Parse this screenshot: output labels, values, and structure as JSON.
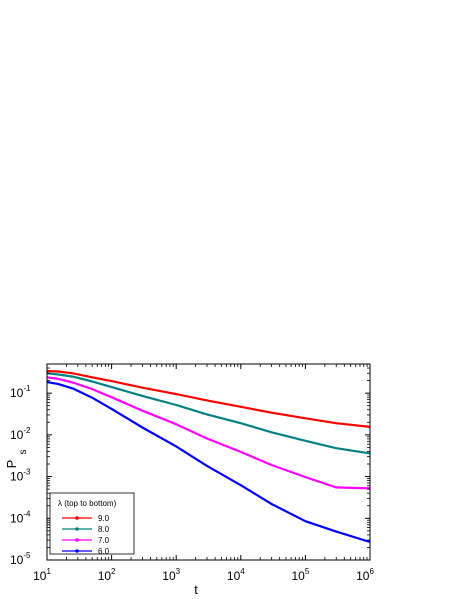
{
  "chart_data": {
    "type": "line",
    "xlabel": "t",
    "ylabel": "P",
    "ylabel_subscript": "s",
    "xscale": "log",
    "yscale": "log",
    "xlim": [
      10,
      1000000
    ],
    "ylim": [
      1e-05,
      0.5
    ],
    "x_ticks": [
      {
        "base": "10",
        "exp": "1"
      },
      {
        "base": "10",
        "exp": "2"
      },
      {
        "base": "10",
        "exp": "3"
      },
      {
        "base": "10",
        "exp": "4"
      },
      {
        "base": "10",
        "exp": "5"
      },
      {
        "base": "10",
        "exp": "6"
      }
    ],
    "y_ticks": [
      {
        "base": "10",
        "exp": "-5"
      },
      {
        "base": "10",
        "exp": "-4"
      },
      {
        "base": "10",
        "exp": "-3"
      },
      {
        "base": "10",
        "exp": "-2"
      },
      {
        "base": "10",
        "exp": "-1"
      }
    ],
    "legend": {
      "title": "λ (top to bottom)",
      "position": "bottom-left"
    },
    "series": [
      {
        "name": "9.0",
        "color": "#ff0000",
        "points": [
          [
            10,
            0.34
          ],
          [
            15,
            0.33
          ],
          [
            25,
            0.3
          ],
          [
            50,
            0.24
          ],
          [
            100,
            0.195
          ],
          [
            300,
            0.135
          ],
          [
            1000,
            0.095
          ],
          [
            3000,
            0.067
          ],
          [
            10000,
            0.047
          ],
          [
            30000,
            0.034
          ],
          [
            100000,
            0.025
          ],
          [
            300000,
            0.019
          ],
          [
            1000000,
            0.0155
          ]
        ]
      },
      {
        "name": "8.0",
        "color": "#008080",
        "points": [
          [
            10,
            0.3
          ],
          [
            15,
            0.28
          ],
          [
            25,
            0.25
          ],
          [
            50,
            0.19
          ],
          [
            100,
            0.14
          ],
          [
            300,
            0.086
          ],
          [
            1000,
            0.052
          ],
          [
            3000,
            0.031
          ],
          [
            10000,
            0.019
          ],
          [
            30000,
            0.0115
          ],
          [
            100000,
            0.0072
          ],
          [
            300000,
            0.0048
          ],
          [
            1000000,
            0.0036
          ]
        ]
      },
      {
        "name": "7.0",
        "color": "#ff00ff",
        "points": [
          [
            10,
            0.24
          ],
          [
            15,
            0.22
          ],
          [
            25,
            0.18
          ],
          [
            50,
            0.125
          ],
          [
            100,
            0.08
          ],
          [
            300,
            0.038
          ],
          [
            1000,
            0.018
          ],
          [
            3000,
            0.0082
          ],
          [
            10000,
            0.0039
          ],
          [
            30000,
            0.0019
          ],
          [
            100000,
            0.00097
          ],
          [
            300000,
            0.00055
          ],
          [
            1000000,
            0.00052
          ]
        ]
      },
      {
        "name": "6.0",
        "color": "#0000ff",
        "points": [
          [
            10,
            0.185
          ],
          [
            15,
            0.165
          ],
          [
            25,
            0.13
          ],
          [
            50,
            0.078
          ],
          [
            100,
            0.042
          ],
          [
            300,
            0.015
          ],
          [
            1000,
            0.0053
          ],
          [
            3000,
            0.0018
          ],
          [
            10000,
            0.00062
          ],
          [
            30000,
            0.00022
          ],
          [
            100000,
            8.5e-05
          ],
          [
            300000,
            4.8e-05
          ],
          [
            1000000,
            2.7e-05
          ]
        ]
      }
    ]
  }
}
